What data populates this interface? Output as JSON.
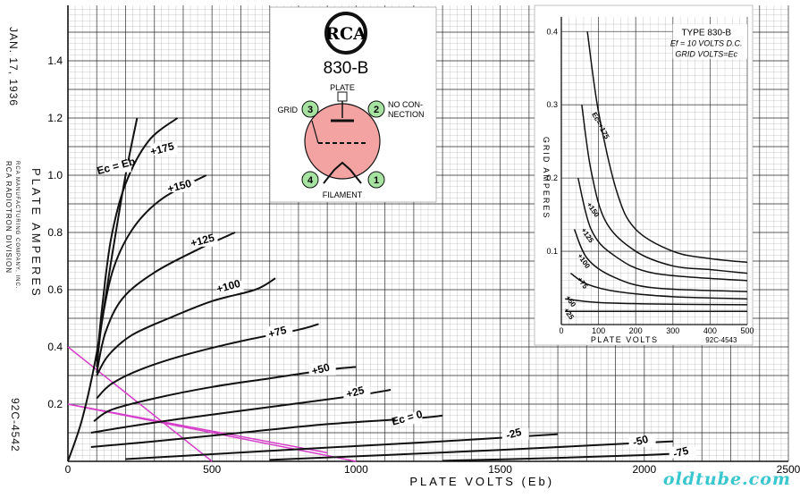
{
  "side_text": {
    "date": "JAN. 17, 1936",
    "axis_y": "PLATE AMPERES",
    "company_1": "RCA RADIOTRON DIVISION",
    "company_2": "RCA MANUFACTURING COMPANY, INC.",
    "drawing_no": "92C-4542"
  },
  "tube_info": {
    "logo": "RCA",
    "model": "830-B",
    "labels": {
      "plate": "PLATE",
      "grid": "GRID",
      "no_connection_1": "NO CON-",
      "no_connection_2": "NECTION",
      "filament": "FILAMENT"
    },
    "pins": [
      "1",
      "2",
      "3",
      "4"
    ],
    "colors": {
      "envelope": "#f4a3a3",
      "pin": "#a6e3a1",
      "plate": "#ffffff"
    }
  },
  "watermark": "oldtube.com",
  "chart_data": [
    {
      "type": "line",
      "xlabel": "PLATE VOLTS (Eb)",
      "ylabel": "PLATE AMPERES",
      "xlim": [
        0,
        2500
      ],
      "ylim": [
        0,
        1.6
      ],
      "xticks": [
        0,
        500,
        1000,
        1500,
        2000,
        2500
      ],
      "yticks": [
        0,
        0.2,
        0.4,
        0.6,
        0.8,
        1.0,
        1.2,
        1.4
      ],
      "xtick_labels": [
        "0",
        "500",
        "1000",
        "1500",
        "2000",
        "2500"
      ],
      "ytick_labels": [
        "",
        "0.2",
        "0.4",
        "0.6",
        "0.8",
        "1.0",
        "1.2",
        "1.4"
      ],
      "grid": true,
      "colors": {
        "curve": "#111111",
        "load_line": "#d63fc9",
        "grid": "#222222"
      },
      "series": [
        {
          "name": "Ec = Eb",
          "label": "Ec = Eb",
          "label_at": [
            170,
            1.02
          ],
          "points": [
            [
              0,
              0
            ],
            [
              50,
              0.15
            ],
            [
              100,
              0.38
            ],
            [
              150,
              0.7
            ],
            [
              200,
              1.0
            ],
            [
              240,
              1.2
            ]
          ]
        },
        {
          "name": "+175",
          "label": "+175",
          "label_at": [
            330,
            1.08
          ],
          "points": [
            [
              100,
              0.35
            ],
            [
              120,
              0.55
            ],
            [
              150,
              0.78
            ],
            [
              200,
              0.97
            ],
            [
              280,
              1.12
            ],
            [
              380,
              1.2
            ]
          ]
        },
        {
          "name": "+150",
          "label": "+150",
          "label_at": [
            390,
            0.95
          ],
          "points": [
            [
              100,
              0.33
            ],
            [
              120,
              0.5
            ],
            [
              160,
              0.68
            ],
            [
              230,
              0.82
            ],
            [
              330,
              0.92
            ],
            [
              480,
              1.0
            ]
          ]
        },
        {
          "name": "+125",
          "label": "+125",
          "label_at": [
            470,
            0.76
          ],
          "points": [
            [
              100,
              0.31
            ],
            [
              130,
              0.45
            ],
            [
              190,
              0.57
            ],
            [
              300,
              0.66
            ],
            [
              450,
              0.74
            ],
            [
              580,
              0.8
            ]
          ]
        },
        {
          "name": "+100",
          "label": "+100",
          "label_at": [
            560,
            0.6
          ],
          "points": [
            [
              100,
              0.3
            ],
            [
              140,
              0.37
            ],
            [
              220,
              0.44
            ],
            [
              350,
              0.5
            ],
            [
              500,
              0.56
            ],
            [
              650,
              0.6
            ],
            [
              720,
              0.64
            ]
          ]
        },
        {
          "name": "+75",
          "label": "+75",
          "label_at": [
            730,
            0.44
          ],
          "points": [
            [
              100,
              0.22
            ],
            [
              150,
              0.27
            ],
            [
              250,
              0.32
            ],
            [
              400,
              0.37
            ],
            [
              600,
              0.42
            ],
            [
              800,
              0.46
            ],
            [
              870,
              0.48
            ]
          ]
        },
        {
          "name": "+50",
          "label": "+50",
          "label_at": [
            880,
            0.31
          ],
          "points": [
            [
              90,
              0.14
            ],
            [
              150,
              0.18
            ],
            [
              300,
              0.22
            ],
            [
              500,
              0.26
            ],
            [
              700,
              0.29
            ],
            [
              900,
              0.32
            ],
            [
              1000,
              0.33
            ]
          ]
        },
        {
          "name": "+25",
          "label": "+25",
          "label_at": [
            1000,
            0.23
          ],
          "points": [
            [
              80,
              0.1
            ],
            [
              200,
              0.12
            ],
            [
              400,
              0.15
            ],
            [
              700,
              0.19
            ],
            [
              1000,
              0.23
            ],
            [
              1120,
              0.25
            ]
          ]
        },
        {
          "name": "Ec = 0",
          "label": "Ec = 0",
          "label_at": [
            1180,
            0.14
          ],
          "points": [
            [
              80,
              0.05
            ],
            [
              300,
              0.07
            ],
            [
              600,
              0.1
            ],
            [
              900,
              0.13
            ],
            [
              1200,
              0.15
            ],
            [
              1300,
              0.16
            ]
          ]
        },
        {
          "name": "-25",
          "label": "-25",
          "label_at": [
            1550,
            0.085
          ],
          "points": [
            [
              200,
              0.008
            ],
            [
              500,
              0.025
            ],
            [
              900,
              0.048
            ],
            [
              1300,
              0.07
            ],
            [
              1700,
              0.095
            ]
          ]
        },
        {
          "name": "-50",
          "label": "-50",
          "label_at": [
            1990,
            0.06
          ],
          "points": [
            [
              700,
              0.005
            ],
            [
              1100,
              0.022
            ],
            [
              1500,
              0.04
            ],
            [
              1900,
              0.06
            ],
            [
              2100,
              0.07
            ]
          ]
        },
        {
          "name": "-75",
          "label": "-75",
          "label_at": [
            2130,
            0.02
          ],
          "points": [
            [
              1300,
              0.002
            ],
            [
              1700,
              0.012
            ],
            [
              2000,
              0.022
            ],
            [
              2130,
              0.028
            ]
          ]
        }
      ],
      "load_lines": [
        {
          "points": [
            [
              0,
              0.4
            ],
            [
              500,
              0
            ]
          ]
        },
        {
          "points": [
            [
              0,
              0.2
            ],
            [
              1000,
              0
            ]
          ]
        },
        {
          "points": [
            [
              0,
              0.2
            ],
            [
              900,
              0.03
            ]
          ]
        }
      ]
    },
    {
      "type": "line",
      "title": "TYPE 830-B",
      "subtitle": "Ef = 10 VOLTS D.C.",
      "subtitle2": "GRID VOLTS=Ec",
      "xlabel": "PLATE VOLTS",
      "ylabel": "GRID AMPERES",
      "drawing_no": "92C-4543",
      "xlim": [
        0,
        500
      ],
      "ylim": [
        0,
        0.4
      ],
      "xticks": [
        0,
        100,
        200,
        300,
        400,
        500
      ],
      "yticks": [
        0,
        0.1,
        0.2,
        0.3,
        0.4
      ],
      "xtick_labels": [
        "0",
        "100",
        "200",
        "300",
        "400",
        "500"
      ],
      "ytick_labels": [
        "",
        "0.1",
        "0.2",
        "0.3",
        "0.4"
      ],
      "grid": true,
      "series": [
        {
          "name": "Ec=+175",
          "label": "Ec=+175",
          "label_at": [
            100,
            0.27
          ],
          "points": [
            [
              70,
              0.4
            ],
            [
              100,
              0.29
            ],
            [
              150,
              0.18
            ],
            [
              200,
              0.13
            ],
            [
              300,
              0.1
            ],
            [
              400,
              0.09
            ],
            [
              500,
              0.085
            ]
          ]
        },
        {
          "name": "+150",
          "label": "+150",
          "label_at": [
            80,
            0.155
          ],
          "points": [
            [
              55,
              0.3
            ],
            [
              80,
              0.21
            ],
            [
              120,
              0.14
            ],
            [
              200,
              0.1
            ],
            [
              300,
              0.08
            ],
            [
              400,
              0.075
            ],
            [
              500,
              0.07
            ]
          ]
        },
        {
          "name": "+125",
          "label": "+125",
          "label_at": [
            65,
            0.12
          ],
          "points": [
            [
              45,
              0.2
            ],
            [
              80,
              0.13
            ],
            [
              140,
              0.095
            ],
            [
              250,
              0.07
            ],
            [
              500,
              0.06
            ]
          ]
        },
        {
          "name": "+100",
          "label": "+100",
          "label_at": [
            55,
            0.085
          ],
          "points": [
            [
              35,
              0.13
            ],
            [
              70,
              0.09
            ],
            [
              140,
              0.065
            ],
            [
              250,
              0.05
            ],
            [
              500,
              0.045
            ]
          ]
        },
        {
          "name": "+75",
          "label": "+75",
          "label_at": [
            52,
            0.055
          ],
          "points": [
            [
              25,
              0.07
            ],
            [
              70,
              0.055
            ],
            [
              150,
              0.045
            ],
            [
              300,
              0.038
            ],
            [
              500,
              0.035
            ]
          ]
        },
        {
          "name": "+50",
          "label": "+50",
          "label_at": [
            20,
            0.03
          ],
          "points": [
            [
              10,
              0.035
            ],
            [
              100,
              0.03
            ],
            [
              250,
              0.028
            ],
            [
              500,
              0.027
            ]
          ]
        },
        {
          "name": "+25",
          "label": "+25",
          "label_at": [
            15,
            0.013
          ],
          "points": [
            [
              10,
              0.018
            ],
            [
              150,
              0.018
            ],
            [
              500,
              0.018
            ]
          ]
        }
      ]
    }
  ]
}
